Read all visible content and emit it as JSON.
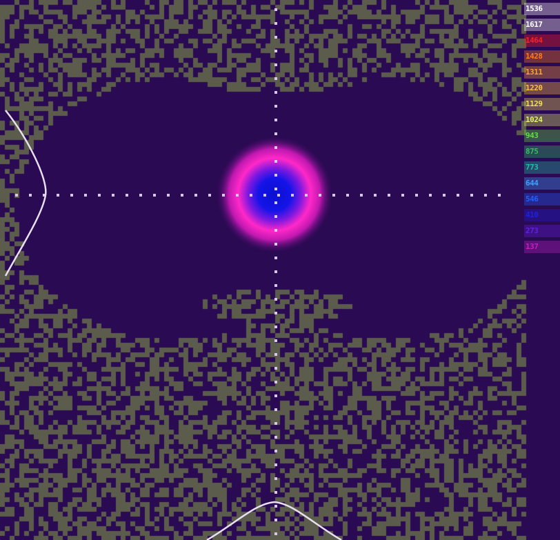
{
  "image": {
    "description_kind": "laser-beam-profile",
    "background_color": "#2a0a52",
    "noise_color": "#5c5c4c",
    "crosshair_color": "#d8c8e8",
    "profile_curve_color": "#e8e0f0"
  },
  "beam": {
    "core_color": "#1010e0",
    "mid_color": "#6020e0",
    "ring_color": "#ff20c0",
    "outer_color": "#6a0a8a"
  },
  "colorbar": {
    "entries": [
      {
        "text": "1536",
        "color": "#ffffff"
      },
      {
        "text": "1617",
        "color": "#ffffff"
      },
      {
        "text": "1464",
        "color": "#ff2020"
      },
      {
        "text": "1428",
        "color": "#ff7a20"
      },
      {
        "text": "1311",
        "color": "#ffa030"
      },
      {
        "text": "1220",
        "color": "#ffc040"
      },
      {
        "text": "1129",
        "color": "#f0e050"
      },
      {
        "text": "1024",
        "color": "#e0f060"
      },
      {
        "text": "943",
        "color": "#60e040"
      },
      {
        "text": "875",
        "color": "#30c060"
      },
      {
        "text": "773",
        "color": "#20c0a0"
      },
      {
        "text": "644",
        "color": "#40a0ff"
      },
      {
        "text": "546",
        "color": "#2060ff"
      },
      {
        "text": "410",
        "color": "#2020e0"
      },
      {
        "text": "273",
        "color": "#6020e0"
      },
      {
        "text": "137",
        "color": "#c020c0"
      }
    ]
  }
}
